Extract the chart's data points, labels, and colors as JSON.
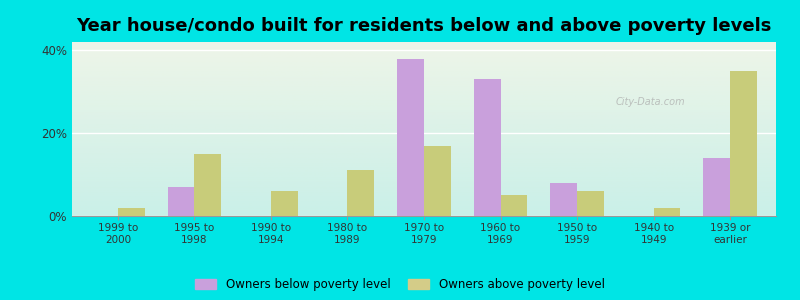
{
  "title": "Year house/condo built for residents below and above poverty levels",
  "categories": [
    "1999 to\n2000",
    "1995 to\n1998",
    "1990 to\n1994",
    "1980 to\n1989",
    "1970 to\n1979",
    "1960 to\n1969",
    "1950 to\n1959",
    "1940 to\n1949",
    "1939 or\nearlier"
  ],
  "below_poverty": [
    0,
    7,
    0,
    0,
    38,
    33,
    8,
    0,
    14
  ],
  "above_poverty": [
    2,
    15,
    6,
    11,
    17,
    5,
    6,
    2,
    35
  ],
  "bar_color_below": "#c9a0dc",
  "bar_color_above": "#c8cc7a",
  "legend_color_below": "#c9a0dc",
  "legend_color_above": "#d4cc88",
  "legend_label_below": "Owners below poverty level",
  "legend_label_above": "Owners above poverty level",
  "ylim": [
    0,
    42
  ],
  "yticks": [
    0,
    20,
    40
  ],
  "ytick_labels": [
    "0%",
    "20%",
    "40%"
  ],
  "background_outer": "#00e5e5",
  "bar_width": 0.35,
  "title_fontsize": 13,
  "bg_top_color": "#eef5e8",
  "bg_bottom_color": "#caf0e8"
}
